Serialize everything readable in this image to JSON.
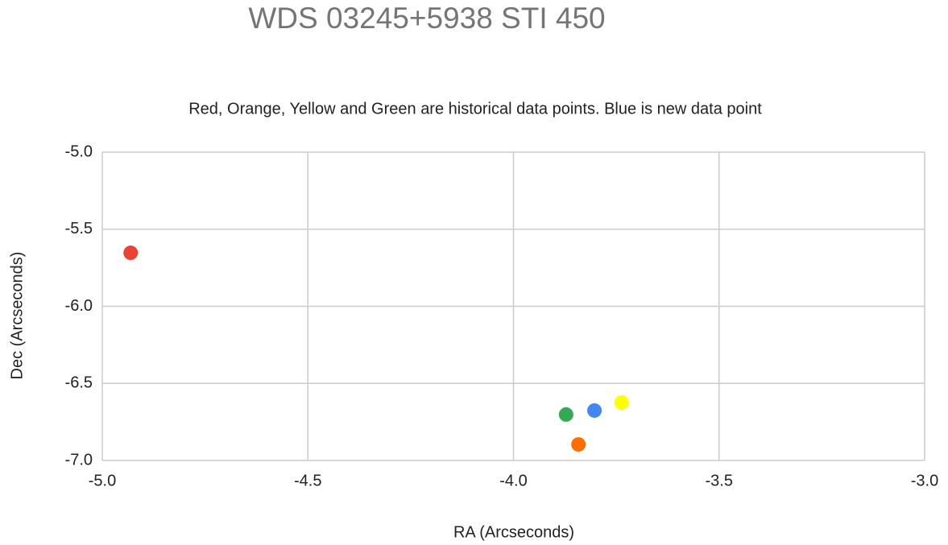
{
  "chart_data": {
    "type": "scatter",
    "title": "WDS 03245+5938 STI 450",
    "subtitle": "Red, Orange, Yellow and Green are historical data points. Blue is new data point",
    "x_label": "RA (Arcseconds)",
    "y_label": "Dec (Arcseconds)",
    "x": [
      -4.931,
      -3.842,
      -3.737,
      -3.872,
      -3.803
    ],
    "values": [
      -5.653,
      -6.896,
      -6.624,
      -6.702,
      -6.676
    ],
    "colors": [
      "#ea4335",
      "#ff6d01",
      "#ffff00",
      "#34a853",
      "#4285f4"
    ],
    "xlim": [
      -5,
      -3
    ],
    "xticks": [
      {
        "value": -5,
        "label": "-5.0"
      },
      -4.5,
      {
        "value": -4,
        "label": "-4.0"
      },
      -3.5,
      {
        "value": -3,
        "label": "-3.0"
      }
    ],
    "ylim": [
      -7,
      -5
    ],
    "yticks": [
      {
        "value": -5,
        "label": "-5.0"
      },
      -5.5,
      {
        "value": -6,
        "label": "-6.0"
      },
      -6.5,
      {
        "value": -7,
        "label": "-7.0"
      }
    ],
    "grid": true
  }
}
